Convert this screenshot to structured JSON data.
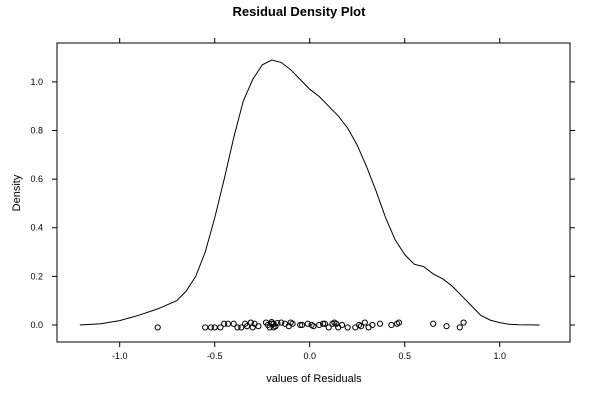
{
  "chart_data": {
    "type": "line",
    "title": "Residual Density Plot",
    "xlabel": "values of Residuals",
    "ylabel": "Density",
    "xlim": [
      -1.33,
      1.37
    ],
    "ylim": [
      -0.07,
      1.16
    ],
    "x_ticks": [
      -1.0,
      -0.5,
      0.0,
      0.5,
      1.0
    ],
    "x_tick_labels": [
      "-1.0",
      "-0.5",
      "0.0",
      "0.5",
      "1.0"
    ],
    "y_ticks": [
      0.0,
      0.2,
      0.4,
      0.6,
      0.8,
      1.0
    ],
    "y_tick_labels": [
      "0.0",
      "0.2",
      "0.4",
      "0.6",
      "0.8",
      "1.0"
    ],
    "grid": false,
    "legend": "none",
    "line_color": "#000000",
    "point_color": "#000000",
    "density": {
      "x": [
        -1.21,
        -1.1,
        -1.0,
        -0.9,
        -0.8,
        -0.7,
        -0.65,
        -0.6,
        -0.55,
        -0.5,
        -0.45,
        -0.4,
        -0.35,
        -0.3,
        -0.25,
        -0.2,
        -0.15,
        -0.1,
        -0.05,
        0.0,
        0.05,
        0.1,
        0.15,
        0.2,
        0.25,
        0.3,
        0.35,
        0.4,
        0.45,
        0.5,
        0.55,
        0.6,
        0.65,
        0.7,
        0.75,
        0.8,
        0.85,
        0.9,
        0.95,
        1.0,
        1.05,
        1.1,
        1.21
      ],
      "y": [
        0.0,
        0.005,
        0.018,
        0.04,
        0.066,
        0.1,
        0.14,
        0.2,
        0.3,
        0.44,
        0.6,
        0.77,
        0.92,
        1.01,
        1.07,
        1.09,
        1.08,
        1.05,
        1.01,
        0.97,
        0.94,
        0.9,
        0.86,
        0.81,
        0.74,
        0.65,
        0.55,
        0.44,
        0.35,
        0.29,
        0.25,
        0.24,
        0.21,
        0.19,
        0.16,
        0.12,
        0.08,
        0.04,
        0.02,
        0.01,
        0.003,
        0.001,
        0.0
      ]
    },
    "residuals": {
      "x": [
        -0.8,
        -0.55,
        -0.52,
        -0.5,
        -0.47,
        -0.45,
        -0.43,
        -0.4,
        -0.38,
        -0.36,
        -0.34,
        -0.33,
        -0.31,
        -0.3,
        -0.29,
        -0.27,
        -0.23,
        -0.22,
        -0.21,
        -0.2,
        -0.2,
        -0.19,
        -0.19,
        -0.18,
        -0.17,
        -0.15,
        -0.13,
        -0.11,
        -0.1,
        -0.09,
        -0.05,
        -0.04,
        -0.01,
        0.01,
        0.02,
        0.05,
        0.07,
        0.08,
        0.1,
        0.12,
        0.13,
        0.14,
        0.15,
        0.17,
        0.2,
        0.24,
        0.26,
        0.27,
        0.29,
        0.31,
        0.33,
        0.37,
        0.43,
        0.46,
        0.47,
        0.65,
        0.72,
        0.79,
        0.81
      ],
      "y": [
        -0.01,
        -0.01,
        -0.01,
        -0.01,
        -0.01,
        0.005,
        0.005,
        0.005,
        -0.01,
        -0.01,
        0.005,
        -0.005,
        0.01,
        -0.01,
        0.005,
        -0.005,
        0.01,
        0.0,
        -0.01,
        0.005,
        0.012,
        -0.01,
        0.005,
        -0.005,
        0.008,
        0.01,
        0.005,
        -0.005,
        0.01,
        0.005,
        0.0,
        0.0,
        0.005,
        0.0,
        -0.005,
        0.0,
        0.005,
        0.005,
        -0.01,
        0.005,
        0.01,
        0.005,
        -0.01,
        0.0,
        -0.01,
        -0.01,
        0.0,
        -0.005,
        0.01,
        -0.01,
        0.0,
        0.005,
        0.0,
        0.005,
        0.01,
        0.005,
        -0.005,
        -0.01,
        0.01
      ]
    }
  }
}
